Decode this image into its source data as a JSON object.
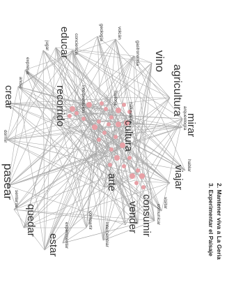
{
  "titles": [
    "2. Mantener viva a La Geria",
    "3. Experimentar el Paisaje"
  ],
  "colors": {
    "edge": "#a9a9a9",
    "node": "#e8a0a6",
    "text": "#333333"
  },
  "words": [
    {
      "id": "arqueologia",
      "text": "arqueología"
    },
    {
      "id": "mirar",
      "text": "mirar"
    },
    {
      "id": "agricultura",
      "text": "agricultura"
    },
    {
      "id": "vino",
      "text": "vino"
    },
    {
      "id": "gastronomia",
      "text": "gastronomía"
    },
    {
      "id": "volcan",
      "text": "volcán"
    },
    {
      "id": "geologia",
      "text": "geología"
    },
    {
      "id": "conciencia",
      "text": "conciencia"
    },
    {
      "id": "educar",
      "text": "educar"
    },
    {
      "id": "jugar",
      "text": "jugar"
    },
    {
      "id": "expresar",
      "text": "expresar"
    },
    {
      "id": "andar",
      "text": "andar"
    },
    {
      "id": "crear",
      "text": "crear"
    },
    {
      "id": "dormir",
      "text": "dormir"
    },
    {
      "id": "recorrido",
      "text": "recorrido"
    },
    {
      "id": "interpretacion",
      "text": "interpretación"
    },
    {
      "id": "naturaleza",
      "text": "naturaleza"
    },
    {
      "id": "historia",
      "text": "historia"
    },
    {
      "id": "cultura",
      "text": "cultura"
    },
    {
      "id": "hablar",
      "text": "hablar"
    },
    {
      "id": "viajar",
      "text": "viajar"
    },
    {
      "id": "arte",
      "text": "arte"
    },
    {
      "id": "visitar",
      "text": "visitar"
    },
    {
      "id": "comunicar",
      "text": "comunicar"
    },
    {
      "id": "consumir",
      "text": "consumir"
    },
    {
      "id": "vender",
      "text": "vender"
    },
    {
      "id": "intercambiar",
      "text": "intercambiar"
    },
    {
      "id": "compartir",
      "text": "compartir"
    },
    {
      "id": "experimentar",
      "text": "experimentar"
    },
    {
      "id": "estar",
      "text": "estar"
    },
    {
      "id": "quedar",
      "text": "quedar"
    },
    {
      "id": "sentarse",
      "text": "sentarse"
    },
    {
      "id": "pasear",
      "text": "pasear"
    }
  ]
}
